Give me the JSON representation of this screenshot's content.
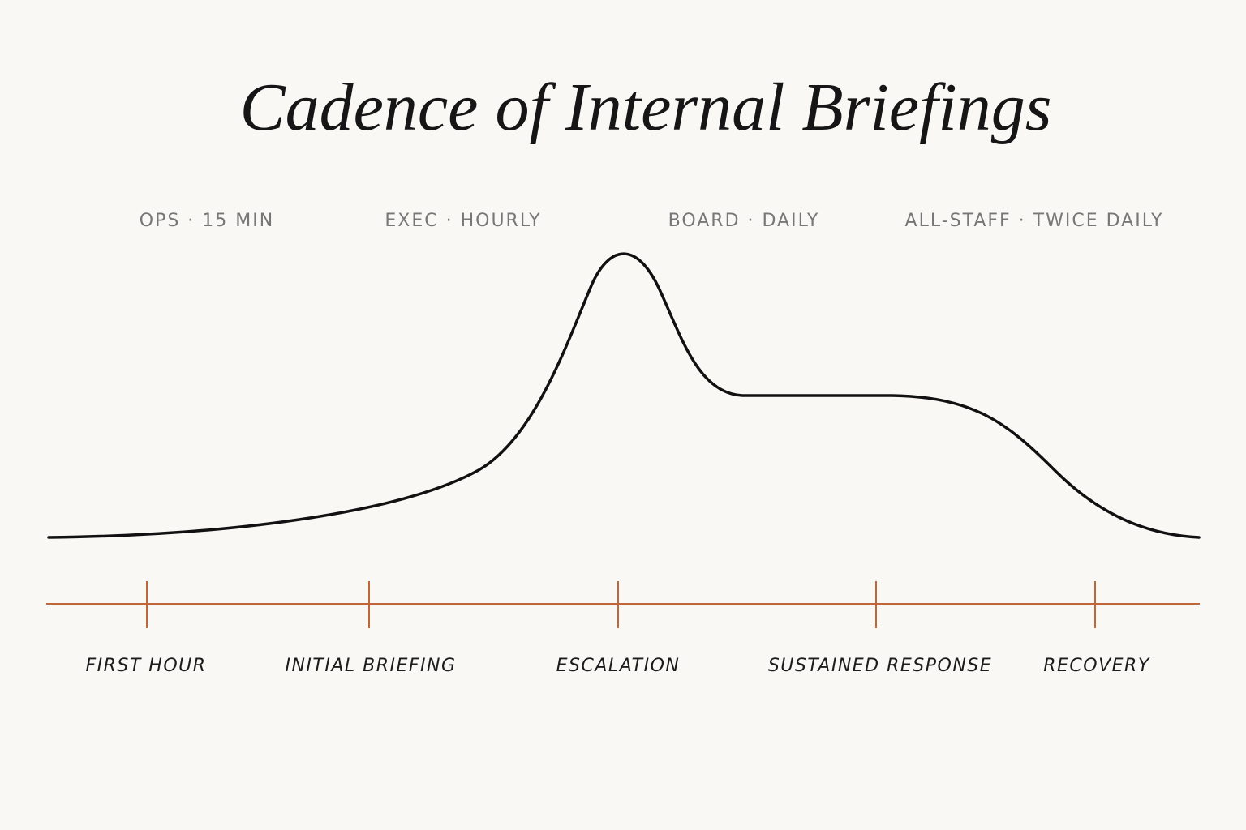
{
  "title": "Cadence of Internal Briefings",
  "cadences": [
    "OPS · 15 MIN",
    "EXEC · HOURLY",
    "BOARD · DAILY",
    "ALL-STAFF · TWICE DAILY"
  ],
  "phases": [
    "FIRST HOUR",
    "INITIAL BRIEFING",
    "ESCALATION",
    "SUSTAINED RESPONSE",
    "RECOVERY"
  ]
}
